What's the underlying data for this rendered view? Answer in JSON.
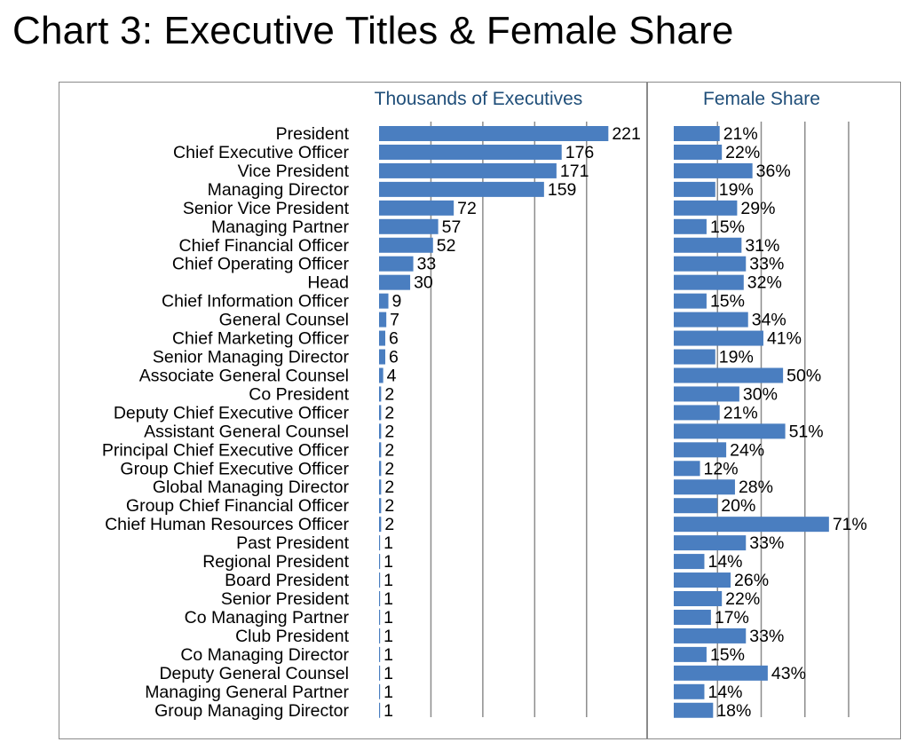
{
  "title": "Chart 3: Executive Titles & Female Share",
  "colors": {
    "bar": "#4a7ec0",
    "grid": "#8c8c8c",
    "header": "#1f4e79",
    "frame": "#8a8a8a"
  },
  "chart_data": [
    {
      "type": "bar",
      "orientation": "horizontal",
      "panel_title": "Thousands of Executives",
      "categories": [
        "President",
        "Chief Executive Officer",
        "Vice President",
        "Managing Director",
        "Senior Vice President",
        "Managing Partner",
        "Chief Financial Officer",
        "Chief Operating Officer",
        "Head",
        "Chief Information Officer",
        "General Counsel",
        "Chief Marketing Officer",
        "Senior Managing Director",
        "Associate General Counsel",
        "Co President",
        "Deputy Chief Executive Officer",
        "Assistant General Counsel",
        "Principal Chief Executive Officer",
        "Group Chief Executive Officer",
        "Global Managing Director",
        "Group Chief Financial Officer",
        "Chief Human Resources Officer",
        "Past President",
        "Regional President",
        "Board President",
        "Senior President",
        "Co Managing Partner",
        "Club President",
        "Co Managing Director",
        "Deputy General Counsel",
        "Managing General Partner",
        "Group Managing Director"
      ],
      "values": [
        221,
        176,
        171,
        159,
        72,
        57,
        52,
        33,
        30,
        9,
        7,
        6,
        6,
        4,
        2,
        2,
        2,
        2,
        2,
        2,
        2,
        2,
        1,
        1,
        1,
        1,
        1,
        1,
        1,
        1,
        1,
        1
      ],
      "xlim": [
        0,
        225
      ],
      "gridlines": [
        50,
        100,
        150,
        200
      ],
      "grid": true
    },
    {
      "type": "bar",
      "orientation": "horizontal",
      "panel_title": "Female Share",
      "unit": "%",
      "values": [
        21,
        22,
        36,
        19,
        29,
        15,
        31,
        33,
        32,
        15,
        34,
        41,
        19,
        50,
        30,
        21,
        51,
        24,
        12,
        28,
        20,
        71,
        33,
        14,
        26,
        22,
        17,
        33,
        15,
        43,
        14,
        18
      ],
      "xlim": [
        0,
        80
      ],
      "gridlines": [
        20,
        40,
        60,
        80
      ],
      "grid": true
    }
  ]
}
